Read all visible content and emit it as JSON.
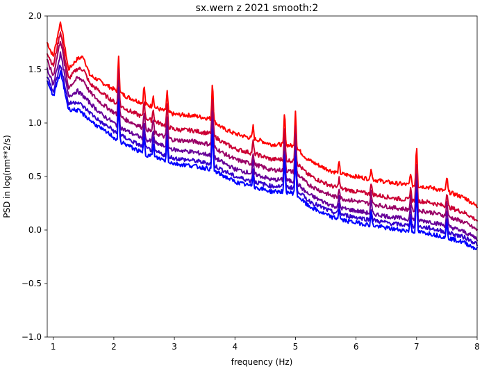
{
  "chart_data": {
    "type": "line",
    "title": "sx.wern z 2021 smooth:2",
    "xlabel": "frequency (Hz)",
    "ylabel": "PSD in log(nm**2/s)",
    "xlim": [
      0.9,
      8.0
    ],
    "ylim": [
      -1.0,
      2.0
    ],
    "x_ticks": [
      1,
      2,
      3,
      4,
      5,
      6,
      7,
      8
    ],
    "x_tick_labels": [
      "1",
      "2",
      "3",
      "4",
      "5",
      "6",
      "7",
      "8"
    ],
    "y_ticks": [
      -1.0,
      -0.5,
      0.0,
      0.5,
      1.0,
      1.5,
      2.0
    ],
    "y_tick_labels": [
      "−1.0",
      "−0.5",
      "0.0",
      "0.5",
      "1.0",
      "1.5",
      "2.0"
    ],
    "grid": false,
    "legend": "none",
    "series": [
      {
        "color": "#ff0000",
        "x": [
          0.9,
          1.0,
          1.12,
          1.25,
          1.4,
          1.5,
          1.6,
          1.8,
          1.95,
          2.05,
          2.2,
          2.5,
          2.8,
          3.0,
          3.3,
          3.6,
          3.8,
          4.0,
          4.2,
          4.4,
          4.6,
          4.8,
          5.0,
          5.2,
          5.4,
          5.6,
          5.8,
          6.0,
          6.3,
          6.6,
          6.9,
          7.2,
          7.5,
          7.8,
          8.0
        ],
        "y": [
          1.75,
          1.62,
          1.95,
          1.5,
          1.6,
          1.62,
          1.45,
          1.38,
          1.33,
          1.3,
          1.25,
          1.18,
          1.12,
          1.08,
          1.07,
          1.04,
          0.95,
          0.9,
          0.87,
          0.84,
          0.8,
          0.8,
          0.78,
          0.66,
          0.6,
          0.55,
          0.52,
          0.5,
          0.47,
          0.44,
          0.42,
          0.4,
          0.36,
          0.3,
          0.22
        ]
      },
      {
        "color": "#cc0033",
        "x": [
          0.9,
          1.0,
          1.12,
          1.25,
          1.4,
          1.5,
          1.6,
          1.8,
          1.95,
          2.05,
          2.2,
          2.5,
          2.8,
          3.0,
          3.3,
          3.6,
          3.8,
          4.0,
          4.2,
          4.4,
          4.6,
          4.8,
          5.0,
          5.2,
          5.4,
          5.6,
          5.8,
          6.0,
          6.3,
          6.6,
          6.9,
          7.2,
          7.5,
          7.8,
          8.0
        ],
        "y": [
          1.66,
          1.53,
          1.86,
          1.41,
          1.51,
          1.5,
          1.37,
          1.28,
          1.22,
          1.18,
          1.13,
          1.05,
          0.99,
          0.94,
          0.93,
          0.9,
          0.82,
          0.76,
          0.73,
          0.7,
          0.66,
          0.66,
          0.64,
          0.52,
          0.46,
          0.41,
          0.38,
          0.36,
          0.33,
          0.3,
          0.28,
          0.26,
          0.22,
          0.16,
          0.09
        ]
      },
      {
        "color": "#990066",
        "x": [
          0.9,
          1.0,
          1.12,
          1.25,
          1.4,
          1.5,
          1.6,
          1.8,
          1.95,
          2.05,
          2.2,
          2.5,
          2.8,
          3.0,
          3.3,
          3.6,
          3.8,
          4.0,
          4.2,
          4.4,
          4.6,
          4.8,
          5.0,
          5.2,
          5.4,
          5.6,
          5.8,
          6.0,
          6.3,
          6.6,
          6.9,
          7.2,
          7.5,
          7.8,
          8.0
        ],
        "y": [
          1.58,
          1.44,
          1.78,
          1.33,
          1.42,
          1.4,
          1.29,
          1.18,
          1.12,
          1.08,
          1.03,
          0.95,
          0.88,
          0.84,
          0.83,
          0.8,
          0.72,
          0.66,
          0.63,
          0.6,
          0.56,
          0.56,
          0.54,
          0.43,
          0.37,
          0.32,
          0.29,
          0.27,
          0.24,
          0.21,
          0.19,
          0.17,
          0.13,
          0.07,
          0.0
        ]
      },
      {
        "color": "#660099",
        "x": [
          0.9,
          1.0,
          1.12,
          1.25,
          1.4,
          1.5,
          1.6,
          1.8,
          1.95,
          2.05,
          2.2,
          2.5,
          2.8,
          3.0,
          3.3,
          3.6,
          3.8,
          4.0,
          4.2,
          4.4,
          4.6,
          4.8,
          5.0,
          5.2,
          5.4,
          5.6,
          5.8,
          6.0,
          6.3,
          6.6,
          6.9,
          7.2,
          7.5,
          7.8,
          8.0
        ],
        "y": [
          1.5,
          1.36,
          1.65,
          1.25,
          1.3,
          1.25,
          1.19,
          1.08,
          1.02,
          0.98,
          0.93,
          0.85,
          0.79,
          0.75,
          0.73,
          0.7,
          0.63,
          0.57,
          0.54,
          0.51,
          0.47,
          0.47,
          0.45,
          0.34,
          0.28,
          0.23,
          0.2,
          0.18,
          0.15,
          0.12,
          0.1,
          0.08,
          0.04,
          -0.02,
          -0.08
        ]
      },
      {
        "color": "#3300cc",
        "x": [
          0.9,
          1.0,
          1.12,
          1.25,
          1.4,
          1.5,
          1.6,
          1.8,
          1.95,
          2.05,
          2.2,
          2.5,
          2.8,
          3.0,
          3.3,
          3.6,
          3.8,
          4.0,
          4.2,
          4.4,
          4.6,
          4.8,
          5.0,
          5.2,
          5.4,
          5.6,
          5.8,
          6.0,
          6.3,
          6.6,
          6.9,
          7.2,
          7.5,
          7.8,
          8.0
        ],
        "y": [
          1.43,
          1.3,
          1.55,
          1.18,
          1.2,
          1.15,
          1.1,
          1.0,
          0.95,
          0.9,
          0.86,
          0.77,
          0.71,
          0.67,
          0.65,
          0.62,
          0.56,
          0.5,
          0.47,
          0.44,
          0.41,
          0.41,
          0.39,
          0.28,
          0.22,
          0.17,
          0.14,
          0.12,
          0.09,
          0.06,
          0.04,
          0.02,
          -0.02,
          -0.07,
          -0.13
        ]
      },
      {
        "color": "#0000ff",
        "x": [
          0.9,
          1.0,
          1.12,
          1.25,
          1.4,
          1.5,
          1.6,
          1.8,
          1.95,
          2.05,
          2.2,
          2.5,
          2.8,
          3.0,
          3.3,
          3.6,
          3.8,
          4.0,
          4.2,
          4.4,
          4.6,
          4.8,
          5.0,
          5.2,
          5.4,
          5.6,
          5.8,
          6.0,
          6.3,
          6.6,
          6.9,
          7.2,
          7.5,
          7.8,
          8.0
        ],
        "y": [
          1.38,
          1.25,
          1.48,
          1.13,
          1.12,
          1.08,
          1.03,
          0.94,
          0.89,
          0.84,
          0.8,
          0.71,
          0.66,
          0.62,
          0.6,
          0.57,
          0.51,
          0.45,
          0.42,
          0.39,
          0.36,
          0.36,
          0.34,
          0.23,
          0.17,
          0.12,
          0.09,
          0.07,
          0.04,
          0.01,
          -0.01,
          -0.03,
          -0.07,
          -0.12,
          -0.18
        ]
      }
    ],
    "peaks": [
      {
        "x": 2.08,
        "height": 0.35
      },
      {
        "x": 2.5,
        "height": 0.18
      },
      {
        "x": 2.65,
        "height": 0.12
      },
      {
        "x": 2.88,
        "height": 0.2
      },
      {
        "x": 3.63,
        "height": 0.4
      },
      {
        "x": 4.3,
        "height": 0.12
      },
      {
        "x": 4.82,
        "height": 0.32
      },
      {
        "x": 5.0,
        "height": 0.35
      },
      {
        "x": 5.72,
        "height": 0.1
      },
      {
        "x": 6.25,
        "height": 0.12
      },
      {
        "x": 6.9,
        "height": 0.12
      },
      {
        "x": 7.0,
        "height": 0.42
      },
      {
        "x": 7.5,
        "height": 0.15
      }
    ]
  }
}
